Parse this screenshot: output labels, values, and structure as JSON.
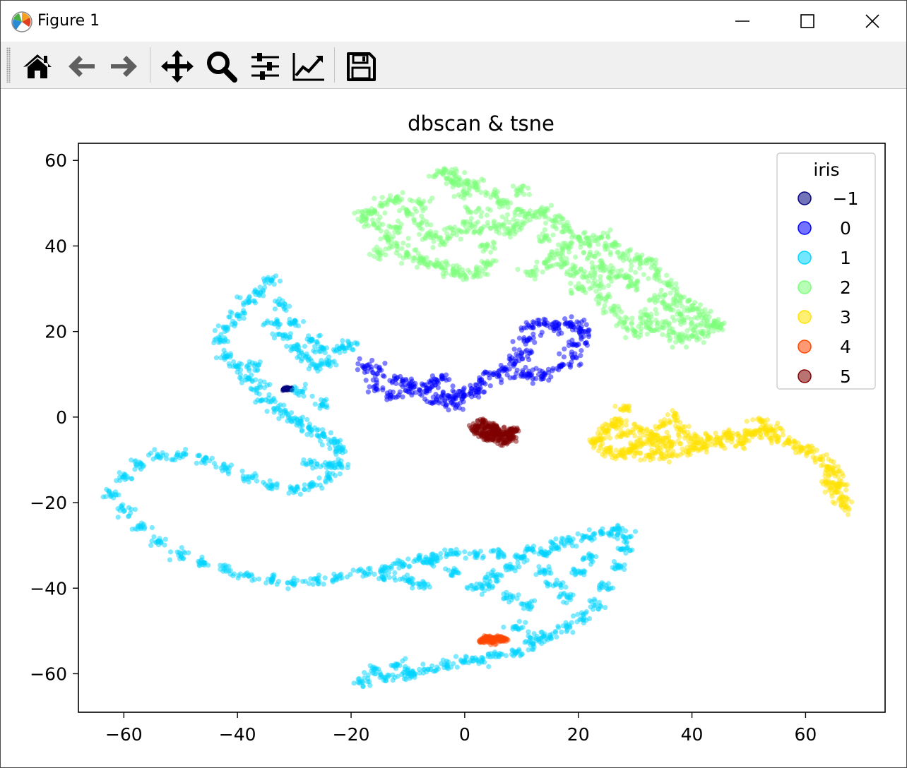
{
  "window": {
    "title": "Figure 1"
  },
  "toolbar": {
    "tools": [
      {
        "name": "home-icon"
      },
      {
        "name": "back-icon"
      },
      {
        "name": "forward-icon"
      },
      {
        "name": "pan-icon"
      },
      {
        "name": "zoom-icon"
      },
      {
        "name": "subplots-icon"
      },
      {
        "name": "customize-icon"
      },
      {
        "name": "save-icon"
      }
    ]
  },
  "chart_data": {
    "type": "scatter",
    "title": "dbscan & tsne",
    "xlabel": "",
    "ylabel": "",
    "xlim": [
      -68,
      74
    ],
    "ylim": [
      -69,
      64
    ],
    "xticks": [
      -60,
      -40,
      -20,
      0,
      20,
      40,
      60
    ],
    "yticks": [
      -60,
      -40,
      -20,
      0,
      20,
      40,
      60
    ],
    "grid": false,
    "legend": {
      "title": "iris",
      "placement": "top-right"
    },
    "series": [
      {
        "name": "−1",
        "color": "#000080",
        "spread": 0.3,
        "points": [
          [
            -31.8,
            6.5
          ],
          [
            -31.2,
            6.6
          ],
          [
            -30.6,
            6.5
          ]
        ]
      },
      {
        "name": "0",
        "color": "#0000ff",
        "spread": 1.3,
        "points": [
          [
            -18,
            12
          ],
          [
            -15,
            11
          ],
          [
            -12,
            9
          ],
          [
            -9,
            7
          ],
          [
            -7,
            6
          ],
          [
            -5,
            4
          ],
          [
            -3,
            5
          ],
          [
            -1,
            6
          ],
          [
            2,
            6
          ],
          [
            3,
            8
          ],
          [
            5,
            10
          ],
          [
            7,
            11
          ],
          [
            9,
            13
          ],
          [
            10,
            15
          ],
          [
            11,
            18
          ],
          [
            12,
            21
          ],
          [
            14,
            22
          ],
          [
            16,
            21
          ],
          [
            18,
            22
          ],
          [
            20,
            21
          ],
          [
            21,
            20
          ],
          [
            20,
            17
          ],
          [
            19,
            14
          ],
          [
            17,
            12
          ],
          [
            14,
            10
          ],
          [
            12,
            9
          ],
          [
            10,
            10
          ],
          [
            -16,
            7
          ],
          [
            -13,
            5
          ],
          [
            -10,
            6
          ],
          [
            -6,
            8
          ],
          [
            -4,
            9
          ],
          [
            -2,
            3
          ],
          [
            0,
            5
          ]
        ]
      },
      {
        "name": "1",
        "color": "#00d4ff",
        "spread": 1.1,
        "points": [
          [
            -34,
            32
          ],
          [
            -36,
            29
          ],
          [
            -38,
            27
          ],
          [
            -40,
            24
          ],
          [
            -42,
            21
          ],
          [
            -43,
            18
          ],
          [
            -42,
            14
          ],
          [
            -40,
            12
          ],
          [
            -38,
            9
          ],
          [
            -36,
            7
          ],
          [
            -35,
            4
          ],
          [
            -33,
            2
          ],
          [
            -31,
            0
          ],
          [
            -29,
            -1
          ],
          [
            -27,
            -3
          ],
          [
            -25,
            -4
          ],
          [
            -23,
            -6
          ],
          [
            -22,
            -8
          ],
          [
            -22,
            -11
          ],
          [
            -24,
            -14
          ],
          [
            -27,
            -16
          ],
          [
            -30,
            -17
          ],
          [
            -34,
            -16
          ],
          [
            -38,
            -14
          ],
          [
            -42,
            -12
          ],
          [
            -46,
            -10
          ],
          [
            -50,
            -9
          ],
          [
            -54,
            -9
          ],
          [
            -57,
            -11
          ],
          [
            -60,
            -14
          ],
          [
            -62,
            -18
          ],
          [
            -60,
            -22
          ],
          [
            -57,
            -26
          ],
          [
            -54,
            -29
          ],
          [
            -50,
            -32
          ],
          [
            -46,
            -34
          ],
          [
            -42,
            -36
          ],
          [
            -38,
            -37
          ],
          [
            -34,
            -38
          ],
          [
            -30,
            -39
          ],
          [
            -26,
            -38
          ],
          [
            -22,
            -37
          ],
          [
            -18,
            -36
          ],
          [
            -14,
            -35
          ],
          [
            -11,
            -34
          ],
          [
            -8,
            -33
          ],
          [
            -5,
            -33
          ],
          [
            -2,
            -32
          ],
          [
            2,
            -32
          ],
          [
            6,
            -32
          ],
          [
            10,
            -33
          ],
          [
            14,
            -32
          ],
          [
            16,
            -30
          ],
          [
            18,
            -29
          ],
          [
            21,
            -28
          ],
          [
            24,
            -27
          ],
          [
            27,
            -26
          ],
          [
            28,
            -28
          ],
          [
            28,
            -31
          ],
          [
            27,
            -35
          ],
          [
            25,
            -40
          ],
          [
            23,
            -44
          ],
          [
            21,
            -47
          ],
          [
            18,
            -49
          ],
          [
            15,
            -51
          ],
          [
            12,
            -53
          ],
          [
            9,
            -55
          ],
          [
            6,
            -56
          ],
          [
            3,
            -57
          ],
          [
            0,
            -57
          ],
          [
            -3,
            -58
          ],
          [
            -6,
            -59
          ],
          [
            -10,
            -60
          ],
          [
            -14,
            -61
          ],
          [
            -18,
            -62
          ],
          [
            -16,
            -59
          ],
          [
            -12,
            -58
          ],
          [
            -9,
            -60
          ],
          [
            -32,
            19
          ],
          [
            -30,
            16
          ],
          [
            -28,
            14
          ],
          [
            -26,
            12
          ],
          [
            -24,
            13
          ],
          [
            -22,
            16
          ],
          [
            -20,
            17
          ],
          [
            -34,
            22
          ],
          [
            -32,
            26
          ],
          [
            -30,
            22
          ],
          [
            -27,
            18
          ],
          [
            -25,
            16
          ],
          [
            -37,
            12
          ],
          [
            -29,
            6
          ],
          [
            -25,
            3
          ],
          [
            -27,
            -11
          ],
          [
            -24,
            -11
          ],
          [
            14,
            -36
          ],
          [
            16,
            -39
          ],
          [
            18,
            -42
          ],
          [
            20,
            -36
          ],
          [
            22,
            -33
          ],
          [
            12,
            -31
          ],
          [
            8,
            -35
          ],
          [
            5,
            -37
          ],
          [
            2,
            -40
          ],
          [
            -2,
            -36
          ],
          [
            -6,
            -34
          ],
          [
            -10,
            -38
          ],
          [
            -14,
            -37
          ],
          [
            9,
            -49
          ],
          [
            13,
            -52
          ],
          [
            11,
            -44
          ],
          [
            8,
            -42
          ],
          [
            4,
            -39
          ],
          [
            -8,
            -39
          ]
        ]
      },
      {
        "name": "2",
        "color": "#7cff79",
        "spread": 1.3,
        "points": [
          [
            -18,
            47
          ],
          [
            -16,
            45
          ],
          [
            -14,
            42
          ],
          [
            -12,
            40
          ],
          [
            -10,
            38
          ],
          [
            -8,
            37
          ],
          [
            -6,
            36
          ],
          [
            -4,
            35
          ],
          [
            -2,
            34
          ],
          [
            0,
            33
          ],
          [
            2,
            34
          ],
          [
            4,
            36
          ],
          [
            4,
            40
          ],
          [
            3,
            44
          ],
          [
            2,
            48
          ],
          [
            0,
            52
          ],
          [
            -2,
            55
          ],
          [
            -4,
            57
          ],
          [
            -2,
            57
          ],
          [
            0,
            55
          ],
          [
            2,
            54
          ],
          [
            5,
            52
          ],
          [
            7,
            50
          ],
          [
            10,
            48
          ],
          [
            12,
            47
          ],
          [
            14,
            48
          ],
          [
            16,
            46
          ],
          [
            18,
            44
          ],
          [
            20,
            42
          ],
          [
            22,
            41
          ],
          [
            24,
            42
          ],
          [
            26,
            40
          ],
          [
            28,
            38
          ],
          [
            30,
            37
          ],
          [
            32,
            36
          ],
          [
            34,
            34
          ],
          [
            36,
            31
          ],
          [
            38,
            28
          ],
          [
            40,
            26
          ],
          [
            42,
            24
          ],
          [
            44,
            22
          ],
          [
            45,
            21
          ],
          [
            42,
            20
          ],
          [
            40,
            19
          ],
          [
            38,
            18
          ],
          [
            36,
            20
          ],
          [
            34,
            22
          ],
          [
            32,
            21
          ],
          [
            30,
            20
          ],
          [
            28,
            22
          ],
          [
            26,
            25
          ],
          [
            25,
            28
          ],
          [
            24,
            31
          ],
          [
            22,
            33
          ],
          [
            20,
            34
          ],
          [
            18,
            36
          ],
          [
            16,
            38
          ],
          [
            14,
            36
          ],
          [
            12,
            34
          ],
          [
            -14,
            50
          ],
          [
            -12,
            51
          ],
          [
            -10,
            48
          ],
          [
            -8,
            45
          ],
          [
            -6,
            42
          ],
          [
            -4,
            41
          ],
          [
            -2,
            43
          ],
          [
            1,
            45
          ],
          [
            6,
            45
          ],
          [
            8,
            43
          ],
          [
            -15,
            38
          ],
          [
            -12,
            44
          ],
          [
            -8,
            50
          ],
          [
            -16,
            48
          ],
          [
            26,
            34
          ],
          [
            30,
            31
          ],
          [
            34,
            28
          ],
          [
            28,
            33
          ],
          [
            32,
            24
          ],
          [
            36,
            26
          ],
          [
            14,
            42
          ],
          [
            10,
            53
          ],
          [
            9,
            45
          ],
          [
            22,
            38
          ],
          [
            20,
            30
          ],
          [
            24,
            35
          ],
          [
            38,
            24
          ],
          [
            40,
            22
          ],
          [
            18,
            40
          ]
        ]
      },
      {
        "name": "3",
        "color": "#ffe100",
        "spread": 1.1,
        "points": [
          [
            23,
            -6
          ],
          [
            25,
            -8
          ],
          [
            27,
            -9
          ],
          [
            29,
            -8
          ],
          [
            31,
            -6
          ],
          [
            33,
            -4
          ],
          [
            35,
            -2
          ],
          [
            37,
            0
          ],
          [
            38,
            -3
          ],
          [
            36,
            -6
          ],
          [
            34,
            -8
          ],
          [
            32,
            -9
          ],
          [
            30,
            -7
          ],
          [
            28,
            -4
          ],
          [
            26,
            -2
          ],
          [
            28,
            2
          ],
          [
            27,
            -1
          ],
          [
            25,
            -3
          ],
          [
            24,
            -5
          ],
          [
            39,
            -8
          ],
          [
            41,
            -6
          ],
          [
            43,
            -5
          ],
          [
            45,
            -6
          ],
          [
            47,
            -5
          ],
          [
            49,
            -6
          ],
          [
            51,
            -4
          ],
          [
            53,
            -3
          ],
          [
            55,
            -5
          ],
          [
            57,
            -6
          ],
          [
            59,
            -7
          ],
          [
            61,
            -8
          ],
          [
            63,
            -10
          ],
          [
            64,
            -12
          ],
          [
            64,
            -15
          ],
          [
            65,
            -17
          ],
          [
            66,
            -19
          ],
          [
            67,
            -21
          ],
          [
            66,
            -16
          ],
          [
            65,
            -13
          ],
          [
            52,
            -1
          ],
          [
            54,
            -3
          ],
          [
            50,
            -4
          ],
          [
            46,
            -4
          ],
          [
            42,
            -7
          ],
          [
            40,
            -5
          ],
          [
            36,
            -9
          ],
          [
            33,
            -6
          ],
          [
            31,
            -3
          ],
          [
            35,
            -5
          ]
        ]
      },
      {
        "name": "4",
        "color": "#ff4500",
        "spread": 0.5,
        "points": [
          [
            3.5,
            -52
          ],
          [
            4.5,
            -52
          ],
          [
            5.5,
            -51.8
          ],
          [
            6.5,
            -52.2
          ],
          [
            5,
            -52.6
          ],
          [
            4,
            -51.4
          ],
          [
            6,
            -51.6
          ],
          [
            3,
            -52.3
          ],
          [
            7,
            -52
          ]
        ]
      },
      {
        "name": "5",
        "color": "#800000",
        "spread": 0.7,
        "points": [
          [
            2,
            -2
          ],
          [
            3,
            -1
          ],
          [
            4,
            -2
          ],
          [
            5,
            -3
          ],
          [
            6,
            -3
          ],
          [
            7,
            -4
          ],
          [
            8,
            -3
          ],
          [
            9,
            -3
          ],
          [
            8,
            -5
          ],
          [
            7,
            -6
          ],
          [
            6,
            -5
          ],
          [
            5,
            -4
          ],
          [
            4,
            -4
          ],
          [
            3,
            -4
          ],
          [
            2,
            -3
          ],
          [
            5,
            -2
          ],
          [
            6,
            -4
          ],
          [
            4,
            -5
          ],
          [
            8,
            -4
          ]
        ]
      }
    ]
  }
}
